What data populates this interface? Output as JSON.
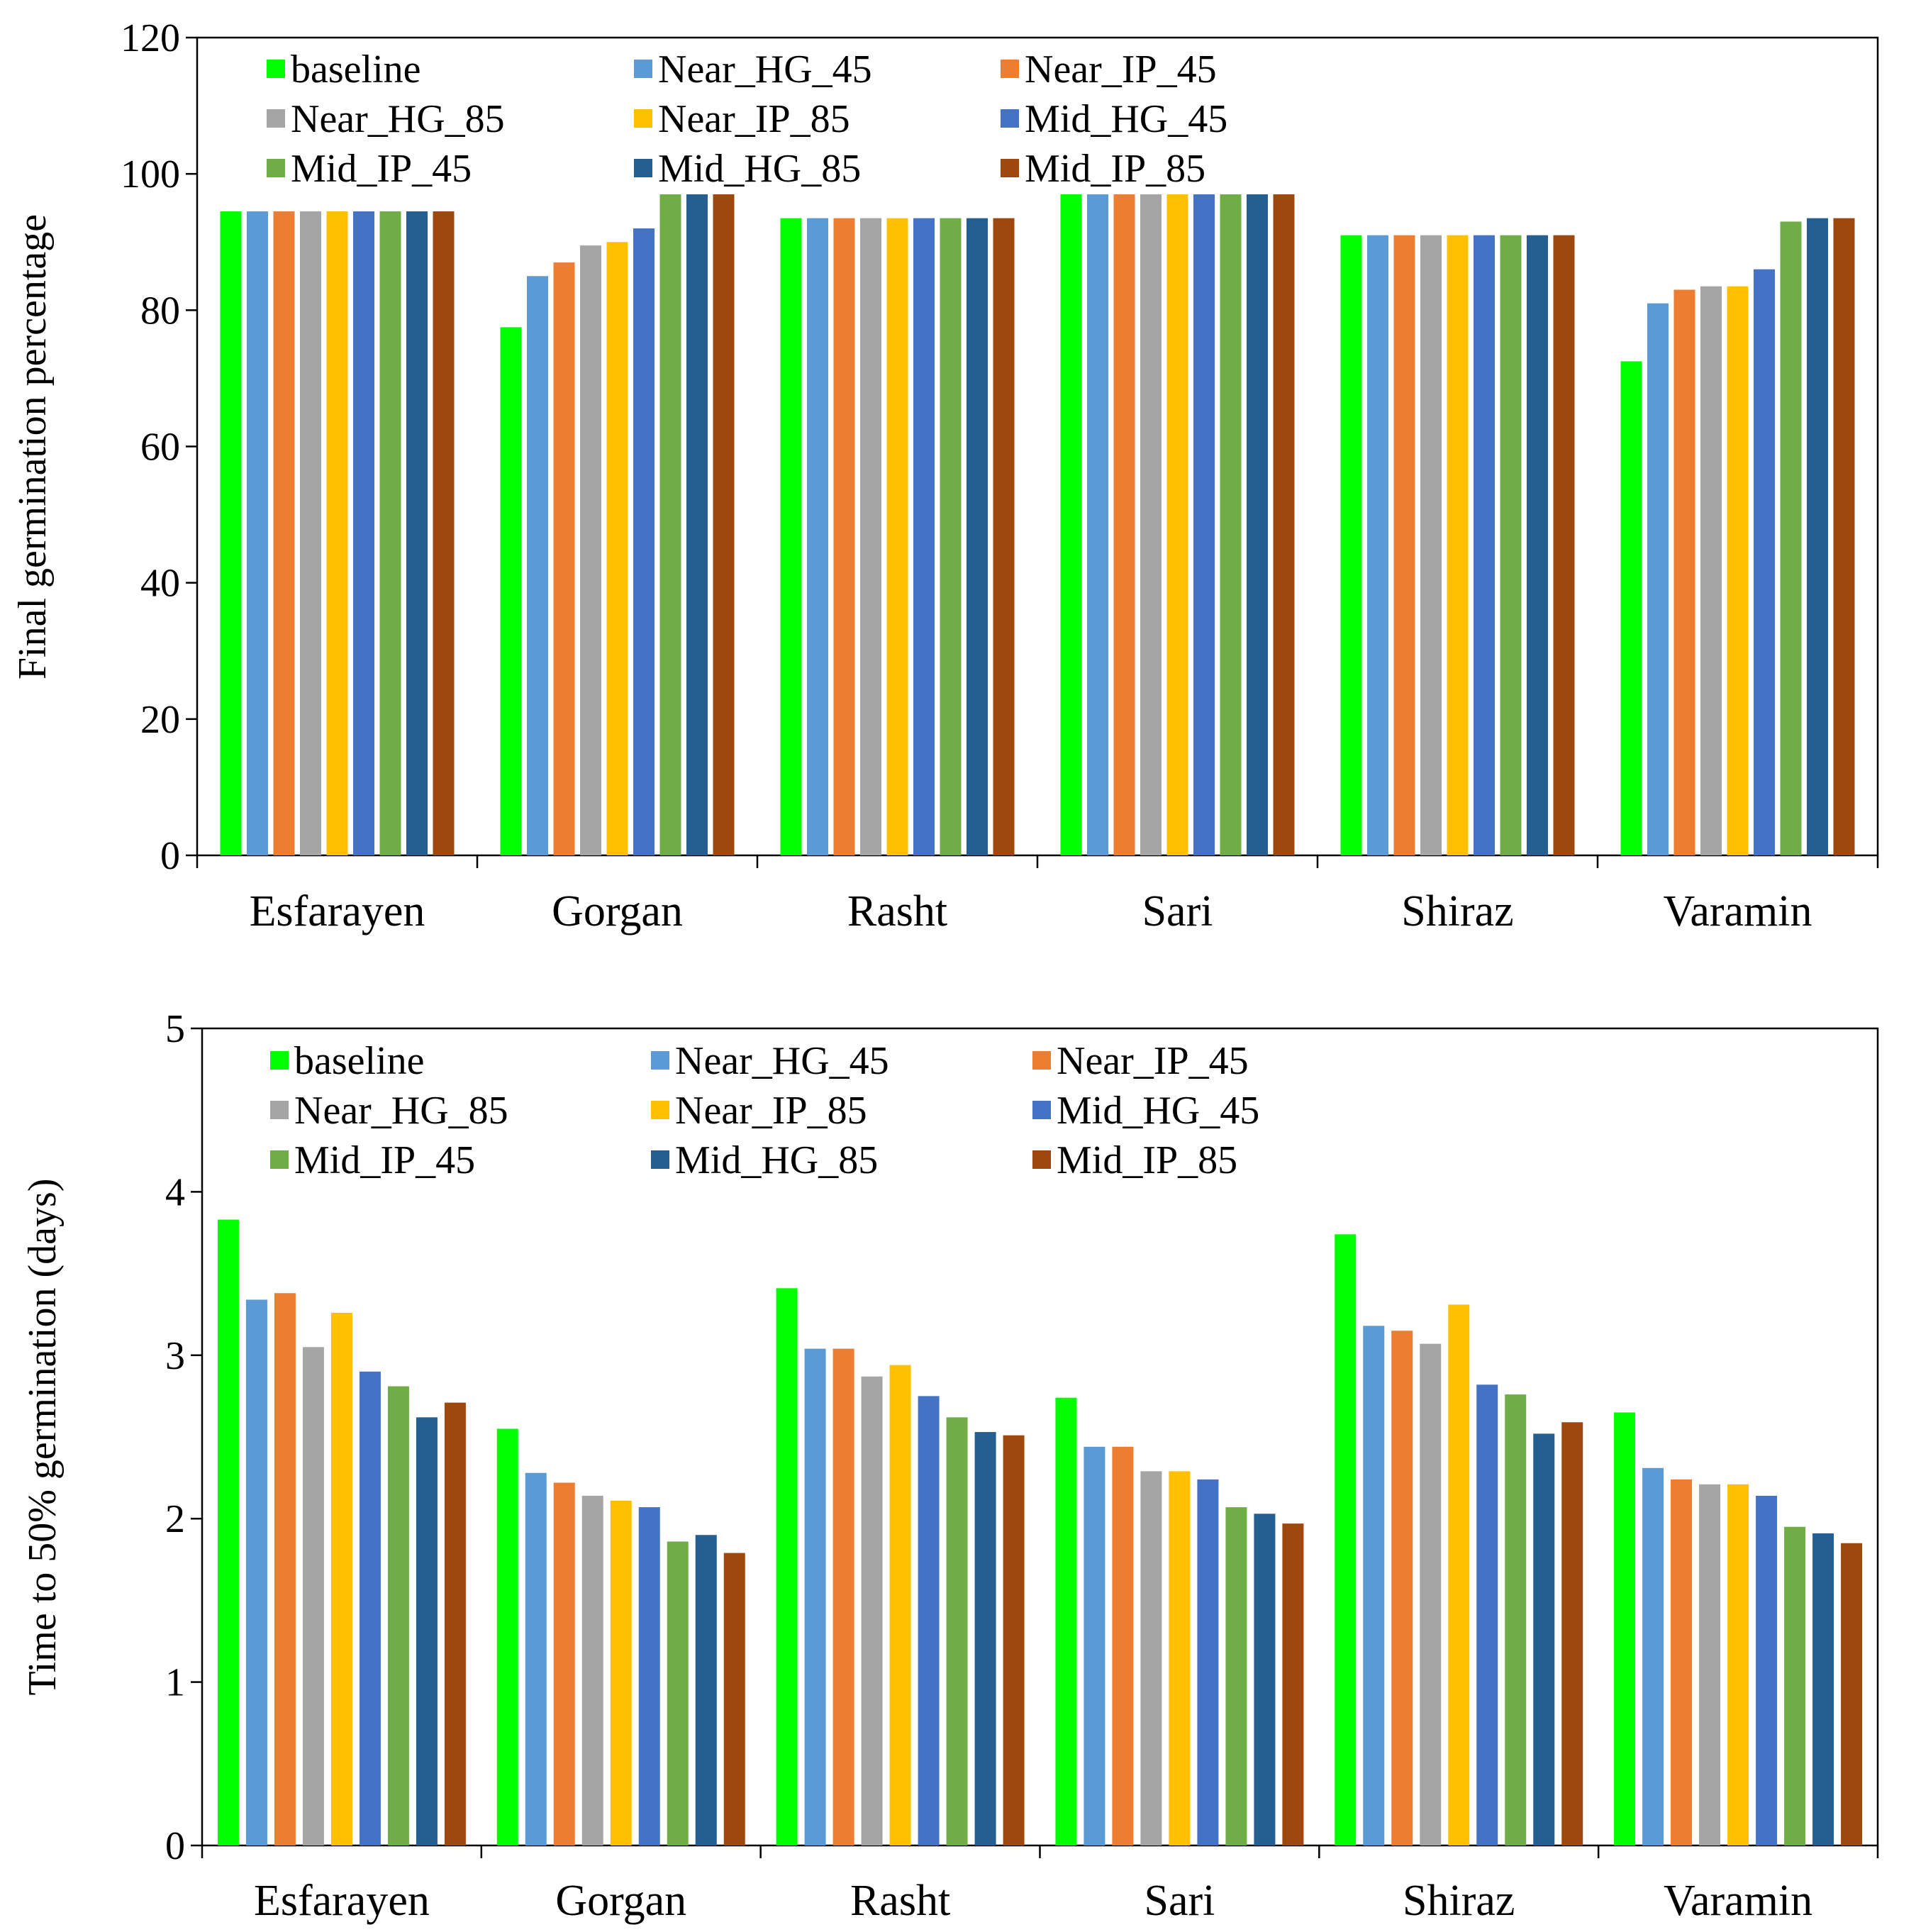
{
  "chart_data": [
    {
      "type": "bar",
      "title": "",
      "xlabel": "",
      "ylabel": "Final germination percentage",
      "ylim": [
        0,
        120
      ],
      "yticks": [
        "0",
        "20",
        "40",
        "60",
        "80",
        "100",
        "120"
      ],
      "grid": false,
      "legend": "top-left, 3 columns",
      "categories": [
        "Esfarayen",
        "Gorgan",
        "Rasht",
        "Sari",
        "Shiraz",
        "Varamin"
      ],
      "series": [
        {
          "name": "baseline",
          "color": "#00ff00",
          "values": [
            94.5,
            77.5,
            93.5,
            97,
            91,
            72.5
          ]
        },
        {
          "name": "Near_HG_45",
          "color": "#5b9bd5",
          "values": [
            94.5,
            85,
            93.5,
            97,
            91,
            81
          ]
        },
        {
          "name": "Near_IP_45",
          "color": "#ed7d31",
          "values": [
            94.5,
            87,
            93.5,
            97,
            91,
            83
          ]
        },
        {
          "name": "Near_HG_85",
          "color": "#a5a5a5",
          "values": [
            94.5,
            89.5,
            93.5,
            97,
            91,
            83.5
          ]
        },
        {
          "name": "Near_IP_85",
          "color": "#ffc000",
          "values": [
            94.5,
            90,
            93.5,
            97,
            91,
            83.5
          ]
        },
        {
          "name": "Mid_HG_45",
          "color": "#4472c4",
          "values": [
            94.5,
            92,
            93.5,
            97,
            91,
            86
          ]
        },
        {
          "name": "Mid_IP_45",
          "color": "#70ad47",
          "values": [
            94.5,
            97,
            93.5,
            97,
            91,
            93
          ]
        },
        {
          "name": "Mid_HG_85",
          "color": "#255e91",
          "values": [
            94.5,
            97,
            93.5,
            97,
            91,
            93.5
          ]
        },
        {
          "name": "Mid_IP_85",
          "color": "#9e480e",
          "values": [
            94.5,
            97,
            93.5,
            97,
            91,
            93.5
          ]
        }
      ]
    },
    {
      "type": "bar",
      "title": "",
      "xlabel": "",
      "ylabel": "Time to 50% germination (days)",
      "ylim": [
        0,
        5
      ],
      "yticks": [
        "0",
        "1",
        "2",
        "3",
        "4",
        "5"
      ],
      "grid": false,
      "legend": "top-left, 3 columns",
      "categories": [
        "Esfarayen",
        "Gorgan",
        "Rasht",
        "Sari",
        "Shiraz",
        "Varamin"
      ],
      "series": [
        {
          "name": "baseline",
          "color": "#00ff00",
          "values": [
            3.83,
            2.55,
            3.41,
            2.74,
            3.74,
            2.65
          ]
        },
        {
          "name": "Near_HG_45",
          "color": "#5b9bd5",
          "values": [
            3.34,
            2.28,
            3.04,
            2.44,
            3.18,
            2.31
          ]
        },
        {
          "name": "Near_IP_45",
          "color": "#ed7d31",
          "values": [
            3.38,
            2.22,
            3.04,
            2.44,
            3.15,
            2.24
          ]
        },
        {
          "name": "Near_HG_85",
          "color": "#a5a5a5",
          "values": [
            3.05,
            2.14,
            2.87,
            2.29,
            3.07,
            2.21
          ]
        },
        {
          "name": "Near_IP_85",
          "color": "#ffc000",
          "values": [
            3.26,
            2.11,
            2.94,
            2.29,
            3.31,
            2.21
          ]
        },
        {
          "name": "Mid_HG_45",
          "color": "#4472c4",
          "values": [
            2.9,
            2.07,
            2.75,
            2.24,
            2.82,
            2.14
          ]
        },
        {
          "name": "Mid_IP_45",
          "color": "#70ad47",
          "values": [
            2.81,
            1.86,
            2.62,
            2.07,
            2.76,
            1.95
          ]
        },
        {
          "name": "Mid_HG_85",
          "color": "#255e91",
          "values": [
            2.62,
            1.9,
            2.53,
            2.03,
            2.52,
            1.91
          ]
        },
        {
          "name": "Mid_IP_85",
          "color": "#9e480e",
          "values": [
            2.71,
            1.79,
            2.51,
            1.97,
            2.59,
            1.85
          ]
        }
      ]
    }
  ]
}
